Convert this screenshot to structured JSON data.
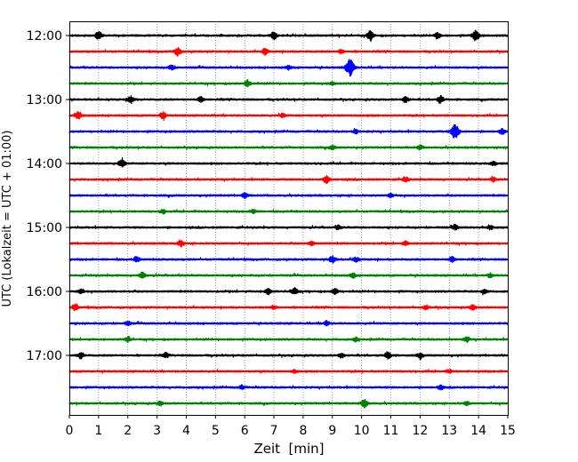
{
  "chart_data": {
    "type": "line",
    "title": "",
    "xlabel": "Zeit  [min]",
    "ylabel": "UTC (Lokalzeit = UTC + 01:00)",
    "xlim": [
      0,
      15
    ],
    "x_ticks": [
      "0",
      "1",
      "2",
      "3",
      "4",
      "5",
      "6",
      "7",
      "8",
      "9",
      "10",
      "11",
      "12",
      "13",
      "14",
      "15"
    ],
    "y_ticks": [
      "12:00",
      "13:00",
      "14:00",
      "15:00",
      "16:00",
      "17:00"
    ],
    "grid": "vertical dotted",
    "colors": [
      "#000000",
      "#ff0000",
      "#0000ff",
      "#008000"
    ],
    "series": [
      {
        "start": "12:00",
        "color": "#000000",
        "events": [
          [
            1.0,
            0.8
          ],
          [
            7.0,
            0.7
          ],
          [
            10.3,
            0.9
          ],
          [
            12.6,
            0.6
          ],
          [
            13.9,
            1.0
          ]
        ]
      },
      {
        "start": "12:15",
        "color": "#ff0000",
        "events": [
          [
            3.7,
            0.8
          ],
          [
            6.7,
            0.6
          ],
          [
            9.3,
            0.4
          ]
        ]
      },
      {
        "start": "12:30",
        "color": "#0000ff",
        "events": [
          [
            3.5,
            0.5
          ],
          [
            7.5,
            0.4
          ],
          [
            9.6,
            1.6
          ]
        ]
      },
      {
        "start": "12:45",
        "color": "#008000",
        "events": [
          [
            6.1,
            0.7
          ],
          [
            9.0,
            0.3
          ]
        ]
      },
      {
        "start": "13:00",
        "color": "#000000",
        "events": [
          [
            2.1,
            0.7
          ],
          [
            4.5,
            0.5
          ],
          [
            11.5,
            0.6
          ],
          [
            12.7,
            0.7
          ]
        ]
      },
      {
        "start": "13:15",
        "color": "#ff0000",
        "events": [
          [
            0.3,
            0.7
          ],
          [
            3.2,
            0.7
          ],
          [
            7.3,
            0.4
          ]
        ]
      },
      {
        "start": "13:30",
        "color": "#0000ff",
        "events": [
          [
            9.8,
            0.4
          ],
          [
            13.2,
            1.4
          ],
          [
            14.8,
            0.5
          ]
        ]
      },
      {
        "start": "13:45",
        "color": "#008000",
        "events": [
          [
            9.0,
            0.4
          ],
          [
            12.0,
            0.4
          ]
        ]
      },
      {
        "start": "14:00",
        "color": "#000000",
        "events": [
          [
            1.8,
            0.8
          ],
          [
            14.5,
            0.4
          ]
        ]
      },
      {
        "start": "14:15",
        "color": "#ff0000",
        "events": [
          [
            8.8,
            0.7
          ],
          [
            11.5,
            0.5
          ],
          [
            14.5,
            0.4
          ]
        ]
      },
      {
        "start": "14:30",
        "color": "#0000ff",
        "events": [
          [
            6.0,
            0.5
          ],
          [
            11.0,
            0.4
          ]
        ]
      },
      {
        "start": "14:45",
        "color": "#008000",
        "events": [
          [
            3.2,
            0.4
          ],
          [
            6.3,
            0.4
          ]
        ]
      },
      {
        "start": "15:00",
        "color": "#000000",
        "events": [
          [
            9.2,
            0.4
          ],
          [
            13.2,
            0.5
          ],
          [
            14.4,
            0.4
          ]
        ]
      },
      {
        "start": "15:15",
        "color": "#ff0000",
        "events": [
          [
            3.8,
            0.6
          ],
          [
            8.3,
            0.4
          ],
          [
            11.5,
            0.4
          ]
        ]
      },
      {
        "start": "15:30",
        "color": "#0000ff",
        "events": [
          [
            2.3,
            0.5
          ],
          [
            9.0,
            0.7
          ],
          [
            9.8,
            0.5
          ],
          [
            13.1,
            0.5
          ]
        ]
      },
      {
        "start": "15:45",
        "color": "#008000",
        "events": [
          [
            2.5,
            0.6
          ],
          [
            9.7,
            0.5
          ],
          [
            14.4,
            0.4
          ]
        ]
      },
      {
        "start": "16:00",
        "color": "#000000",
        "events": [
          [
            0.4,
            0.5
          ],
          [
            6.8,
            0.6
          ],
          [
            7.7,
            0.7
          ],
          [
            9.1,
            0.6
          ],
          [
            14.2,
            0.5
          ]
        ]
      },
      {
        "start": "16:15",
        "color": "#ff0000",
        "events": [
          [
            0.2,
            0.6
          ],
          [
            7.0,
            0.4
          ],
          [
            12.2,
            0.4
          ],
          [
            13.8,
            0.5
          ]
        ]
      },
      {
        "start": "16:30",
        "color": "#0000ff",
        "events": [
          [
            2.0,
            0.4
          ],
          [
            8.8,
            0.5
          ]
        ]
      },
      {
        "start": "16:45",
        "color": "#008000",
        "events": [
          [
            2.0,
            0.5
          ],
          [
            9.8,
            0.4
          ],
          [
            13.6,
            0.5
          ]
        ]
      },
      {
        "start": "17:00",
        "color": "#000000",
        "events": [
          [
            0.4,
            0.6
          ],
          [
            3.3,
            0.5
          ],
          [
            9.3,
            0.5
          ],
          [
            10.9,
            0.7
          ],
          [
            12.0,
            0.5
          ]
        ]
      },
      {
        "start": "17:15",
        "color": "#ff0000",
        "events": [
          [
            7.7,
            0.3
          ],
          [
            13.0,
            0.3
          ]
        ]
      },
      {
        "start": "17:30",
        "color": "#0000ff",
        "events": [
          [
            5.9,
            0.4
          ],
          [
            12.7,
            0.4
          ]
        ]
      },
      {
        "start": "17:45",
        "color": "#008000",
        "events": [
          [
            3.1,
            0.4
          ],
          [
            10.1,
            0.8
          ],
          [
            13.6,
            0.4
          ]
        ]
      }
    ]
  }
}
